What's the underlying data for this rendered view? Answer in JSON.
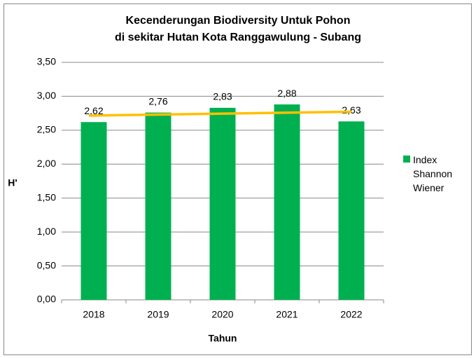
{
  "chart_data": {
    "type": "bar",
    "title": "Kecenderungan Biodiversity Untuk Pohon\ndi sekitar Hutan Kota Ranggawulung - Subang",
    "x_label": "Tahun",
    "y_label": "H'",
    "categories": [
      "2018",
      "2019",
      "2020",
      "2021",
      "2022"
    ],
    "series": [
      {
        "name": "Index Shannon Wiener",
        "color": "#00b050",
        "values": [
          2.62,
          2.76,
          2.83,
          2.88,
          2.63
        ],
        "value_labels": [
          "2,62",
          "2,76",
          "2,83",
          "2,88",
          "2,63"
        ]
      }
    ],
    "trendline": {
      "type": "linear",
      "color": "#ffc000"
    },
    "ylim": [
      0,
      3.5
    ],
    "yticks": [
      {
        "value": 0,
        "label": "0,00"
      },
      {
        "value": 0.5,
        "label": "0,50"
      },
      {
        "value": 1,
        "label": "1,00"
      },
      {
        "value": 1.5,
        "label": "1,50"
      },
      {
        "value": 2,
        "label": "2,00"
      },
      {
        "value": 2.5,
        "label": "2,50"
      },
      {
        "value": 3,
        "label": "3,00"
      },
      {
        "value": 3.5,
        "label": "3,50"
      }
    ],
    "grid": true,
    "legend": "right"
  }
}
